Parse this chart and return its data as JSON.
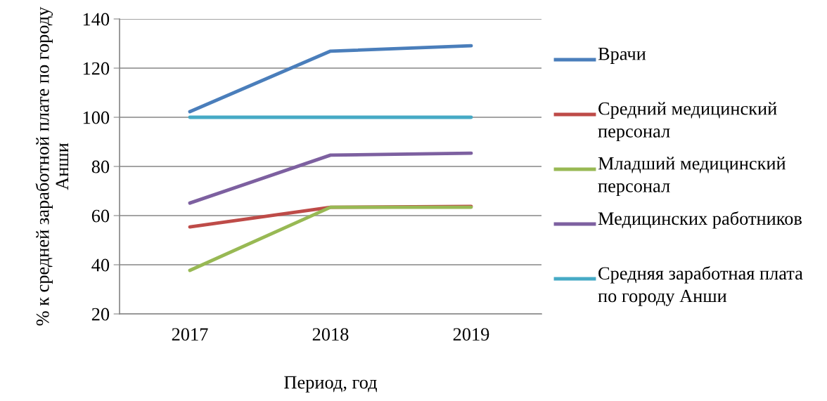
{
  "chart_data": {
    "type": "line",
    "xlabel": "Период, год",
    "ylabel": "% к средней заработной плате по городу Анши",
    "categories": [
      "2017",
      "2018",
      "2019"
    ],
    "series": [
      {
        "name": "Врачи",
        "color": "#4a7ebb",
        "values": [
          102.3,
          126.9,
          129.1
        ]
      },
      {
        "name": "Средний медицинский персонал",
        "color": "#be4b48",
        "values": [
          55.4,
          63.4,
          63.7
        ]
      },
      {
        "name": "Младший медицинский персонал",
        "color": "#98b954",
        "values": [
          37.7,
          63.4,
          63.4
        ]
      },
      {
        "name": "Медицинских работников",
        "color": "#7d60a0",
        "values": [
          65.1,
          84.6,
          85.4
        ]
      },
      {
        "name": "Средняя заработная плата по городу Анши",
        "color": "#46aac5",
        "values": [
          100,
          100,
          100
        ]
      }
    ],
    "ylim": [
      20,
      140
    ],
    "yticks": [
      20,
      40,
      60,
      80,
      100,
      120,
      140
    ],
    "grid": "y",
    "legend": "right",
    "marker": "none",
    "line_style": "solid"
  }
}
